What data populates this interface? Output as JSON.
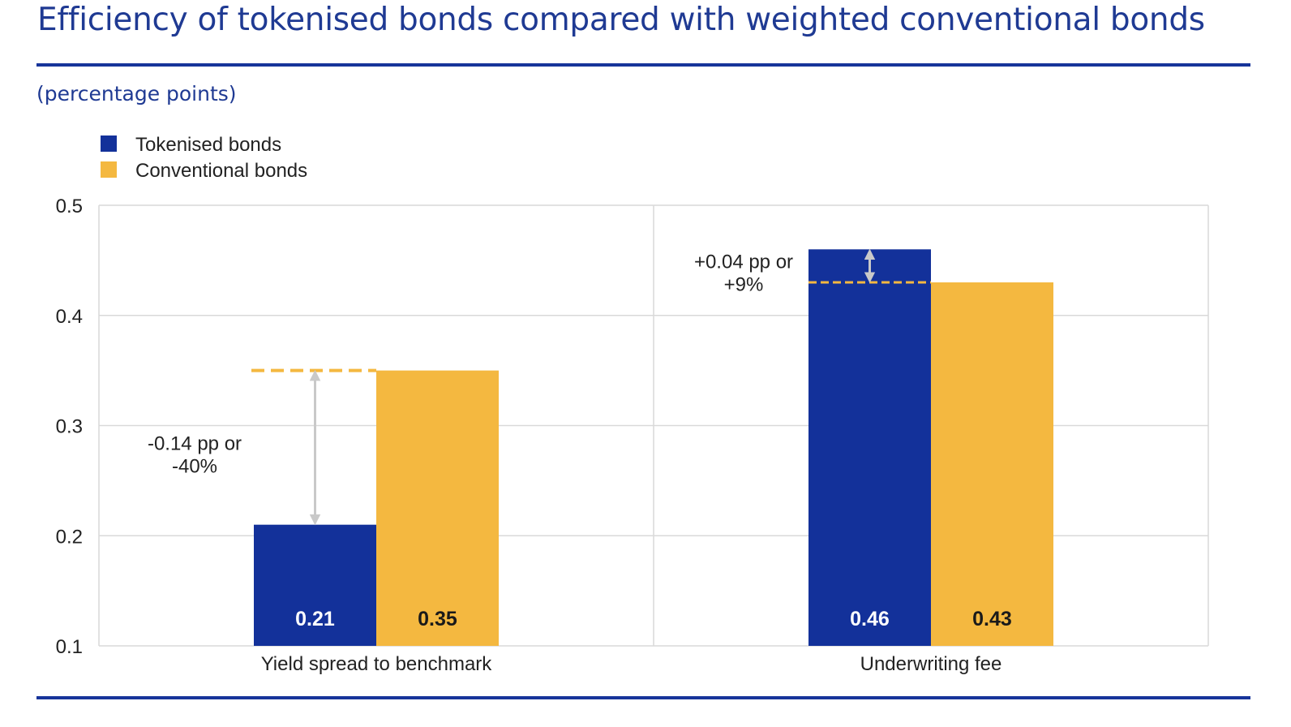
{
  "header": {
    "title": "Efficiency of tokenised bonds compared with weighted conventional bonds",
    "subtitle": "(percentage points)"
  },
  "chart_data": {
    "type": "bar",
    "categories": [
      "Yield spread to benchmark",
      "Underwriting fee"
    ],
    "series": [
      {
        "name": "Tokenised bonds",
        "color": "#13319a",
        "values": [
          0.21,
          0.46
        ],
        "labels": [
          "0.21",
          "0.46"
        ],
        "label_color": "#ffffff"
      },
      {
        "name": "Conventional bonds",
        "color": "#f4b840",
        "values": [
          0.35,
          0.43
        ],
        "labels": [
          "0.35",
          "0.43"
        ],
        "label_color": "#1a1a1a"
      }
    ],
    "ylim": [
      0.1,
      0.5
    ],
    "yticks": [
      "0.1",
      "0.2",
      "0.3",
      "0.4",
      "0.5"
    ],
    "grid": true,
    "legend_position": "top-left",
    "annotations": [
      {
        "category": 0,
        "lines": [
          "-0.14 pp or",
          "-40%"
        ]
      },
      {
        "category": 1,
        "lines": [
          "+0.04 pp or",
          "+9%"
        ]
      }
    ]
  }
}
